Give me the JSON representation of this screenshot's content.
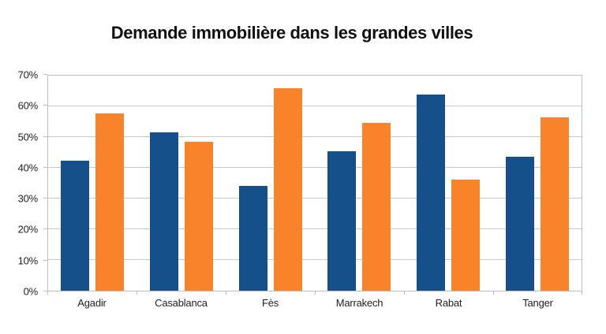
{
  "chart_data": {
    "type": "bar",
    "title": "Demande immobilière dans les grandes villes",
    "categories": [
      "Agadir",
      "Casablanca",
      "Fès",
      "Marrakech",
      "Rabat",
      "Tanger"
    ],
    "series": [
      {
        "color": "#16508A",
        "color_name": "blue",
        "values": [
          42.3,
          51.6,
          34.2,
          45.5,
          63.8,
          43.5
        ]
      },
      {
        "color": "#F8832B",
        "color_name": "orange",
        "values": [
          57.7,
          48.4,
          65.8,
          54.5,
          36.2,
          56.5
        ]
      }
    ],
    "xlabel": "",
    "ylabel": "",
    "ylim": [
      0,
      70
    ],
    "ytick_values": [
      0,
      10,
      20,
      30,
      40,
      50,
      60,
      70
    ],
    "ytick_labels": [
      "0%",
      "10%",
      "20%",
      "30%",
      "40%",
      "50%",
      "60%",
      "70%"
    ],
    "grid": true,
    "legend_position": "none"
  },
  "colors": {
    "grid": "#C9C9C9",
    "axis_border": "#BEBEBE",
    "text": "#1F1F1F",
    "background": "#FFFFFF"
  }
}
